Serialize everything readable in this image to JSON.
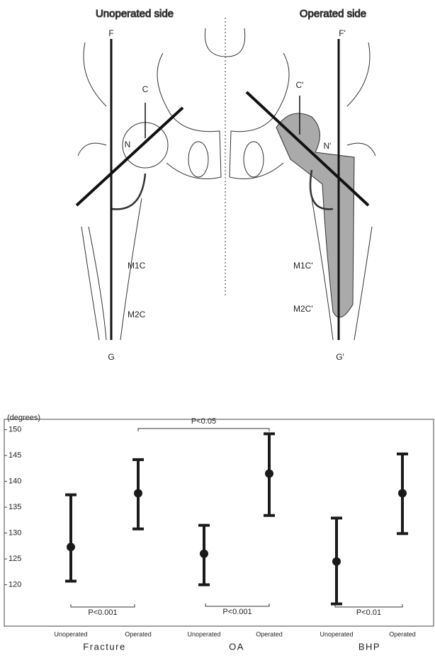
{
  "diagram": {
    "labels": {
      "unoperated_side": "Unoperated side",
      "operated_side": "Operated side",
      "f": "F",
      "f_prime": "F'",
      "c": "C",
      "c_prime": "C'",
      "n": "N",
      "n_prime": "N'",
      "m1c": "M1C",
      "m1c_prime": "M1C'",
      "m2c": "M2C",
      "m2c_prime": "M2C'",
      "g": "G",
      "g_prime": "G'"
    }
  },
  "chart_data": {
    "type": "errorbar",
    "ylabel": "(degrees)",
    "groups": [
      "Fracture",
      "OA",
      "BHP"
    ],
    "categories": [
      "Unoperated",
      "Operated",
      "Unoperated",
      "Operated",
      "Unoperated",
      "Operated"
    ],
    "values": [
      127.3,
      137.7,
      126.0,
      141.5,
      124.5,
      137.7
    ],
    "lower": [
      120.7,
      130.8,
      120.0,
      133.4,
      116.3,
      129.9
    ],
    "upper": [
      137.4,
      144.2,
      131.5,
      149.2,
      132.9,
      145.3
    ],
    "color": "#1a1a1a",
    "ylim": [
      112,
      152
    ],
    "yticks": [
      120,
      125,
      130,
      135,
      140,
      145,
      150
    ],
    "annotations": [
      "P<0.001",
      "P<0.05",
      "P<0.001",
      "P<0.01"
    ]
  }
}
